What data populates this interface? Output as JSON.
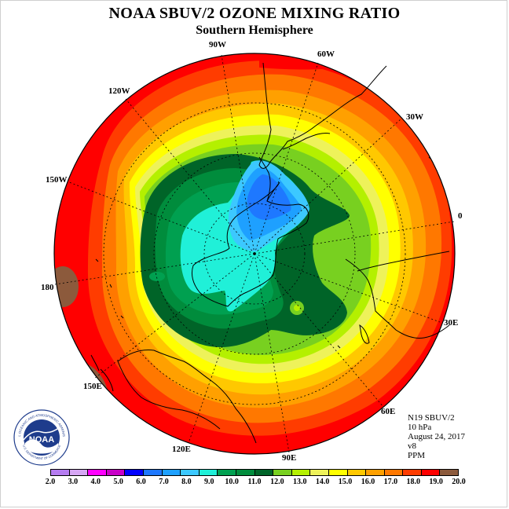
{
  "title": "NOAA SBUV/2 OZONE MIXING RATIO",
  "subtitle": "Southern Hemisphere",
  "longitude_labels": [
    {
      "id": "90w",
      "text": "90W"
    },
    {
      "id": "60w",
      "text": "60W"
    },
    {
      "id": "30w",
      "text": "30W"
    },
    {
      "id": "0",
      "text": "0"
    },
    {
      "id": "30e",
      "text": "30E"
    },
    {
      "id": "60e",
      "text": "60E"
    },
    {
      "id": "90e",
      "text": "90E"
    },
    {
      "id": "120e",
      "text": "120E"
    },
    {
      "id": "150e",
      "text": "150E"
    },
    {
      "id": "180",
      "text": "180"
    },
    {
      "id": "150w",
      "text": "150W"
    },
    {
      "id": "120w",
      "text": "120W"
    }
  ],
  "info": {
    "satellite": "N19 SBUV/2",
    "level": "10 hPa",
    "date": "August 24, 2017",
    "version": "v8",
    "units": "PPM"
  },
  "logo": {
    "text": "NOAA",
    "ring_text": "NATIONAL OCEANIC AND ATMOSPHERIC ADMINISTRATION",
    "ring_text_bottom": "U.S. DEPARTMENT OF COMMERCE"
  },
  "colorbar": {
    "colors": [
      "#b57cf0",
      "#d6a6f4",
      "#ff00ff",
      "#c800c8",
      "#0000ff",
      "#1e78ff",
      "#1ea0ff",
      "#3cc8ff",
      "#20f0d8",
      "#00a050",
      "#008c3c",
      "#006428",
      "#78d020",
      "#b4f000",
      "#eef25a",
      "#ffff00",
      "#ffc800",
      "#ffa000",
      "#ff7800",
      "#ff3c00",
      "#ff0000",
      "#8c5a3c"
    ],
    "tick_labels": [
      "2.0",
      "3.0",
      "4.0",
      "5.0",
      "6.0",
      "7.0",
      "8.0",
      "9.0",
      "10.0",
      "11.0",
      "12.0",
      "13.0",
      "14.0",
      "15.0",
      "16.0",
      "17.0",
      "18.0",
      "19.0",
      "20.0"
    ]
  }
}
